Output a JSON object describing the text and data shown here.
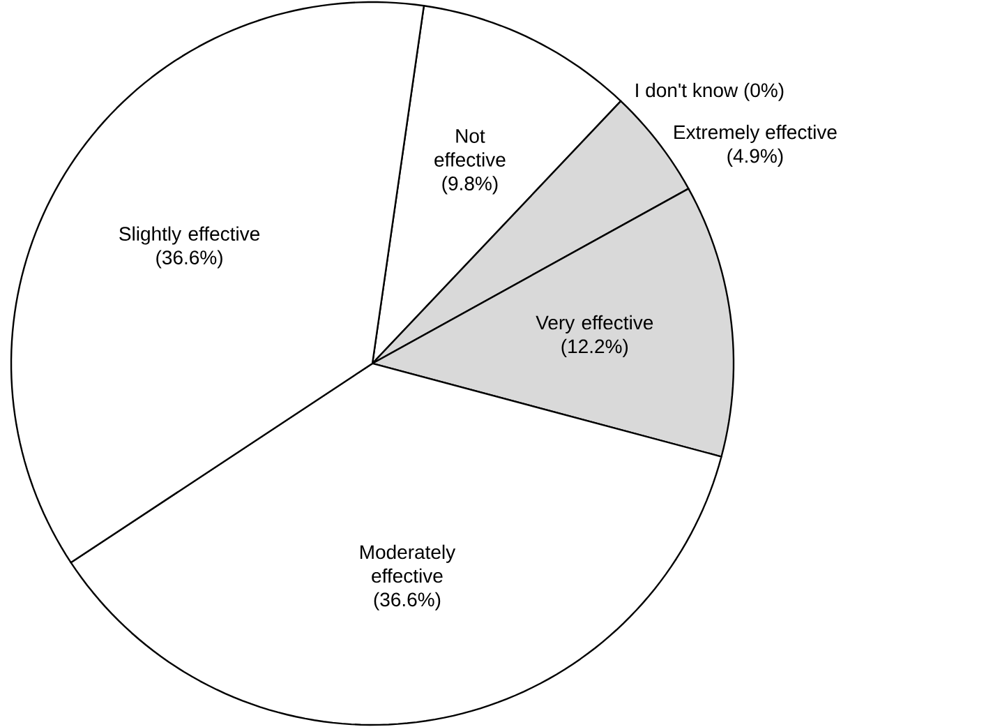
{
  "chart_data": {
    "type": "pie",
    "categories": [
      "Not effective",
      "I don't know",
      "Extremely effective",
      "Very effective",
      "Moderately effective",
      "Slightly effective"
    ],
    "values": [
      9.8,
      0,
      4.9,
      12.2,
      36.6,
      36.6
    ],
    "value_labels": [
      "(9.8%)",
      "(0%)",
      "(4.9%)",
      "(12.2%)",
      "(36.6%)",
      "(36.6%)"
    ],
    "colors": [
      "#ffffff",
      "#ffffff",
      "#d9d9d9",
      "#d9d9d9",
      "#ffffff",
      "#ffffff"
    ]
  }
}
